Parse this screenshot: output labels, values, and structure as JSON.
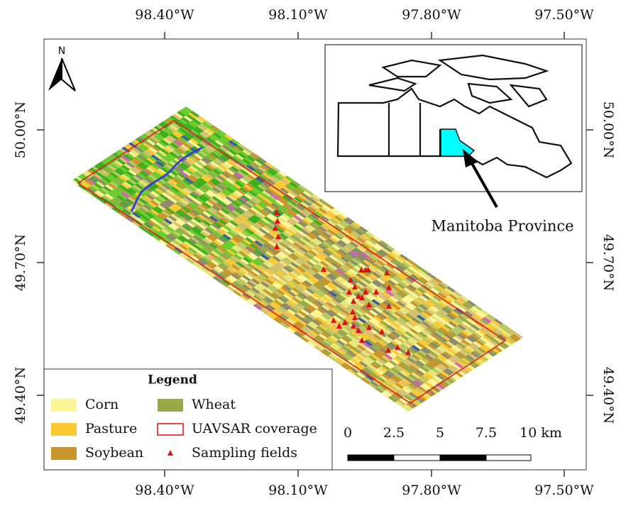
{
  "north": "N",
  "longitude_labels": [
    "98.40°W",
    "98.10°W",
    "97.80°W",
    "97.50°W"
  ],
  "latitude_labels": [
    "50.00°N",
    "49.70°N",
    "49.40°N"
  ],
  "inset": {
    "label": "Manitoba Province"
  },
  "legend": {
    "title": "Legend",
    "items": [
      "Corn",
      "Pasture",
      "Soybean",
      "Wheat",
      "UAVSAR coverage",
      "Sampling fields"
    ]
  },
  "scale_bar": {
    "labels": [
      "0",
      "2.5",
      "5",
      "7.5",
      "10 km"
    ]
  }
}
